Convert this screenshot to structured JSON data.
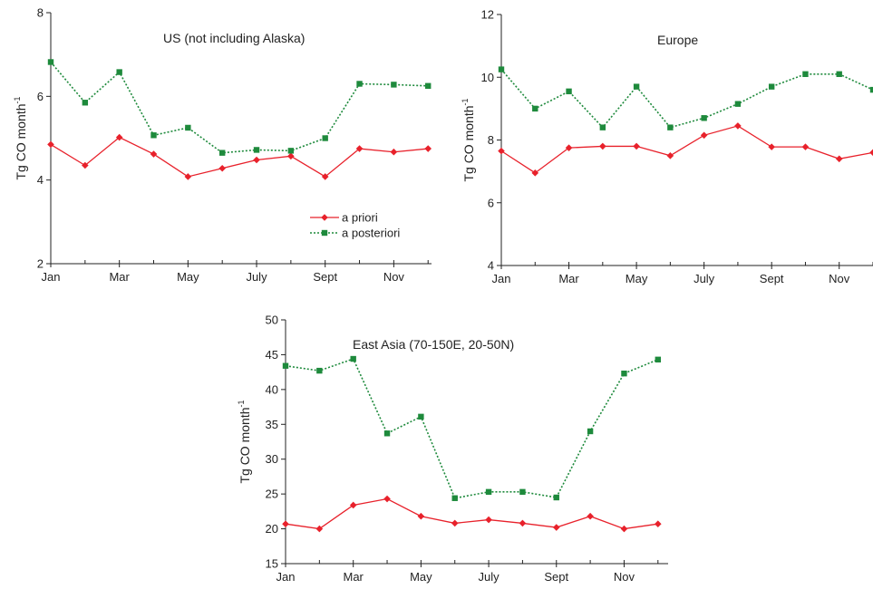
{
  "chart_data": [
    {
      "type": "line",
      "title": "US (not including Alaska)",
      "ylabel": "Tg CO month",
      "ylabel_sup": "-1",
      "ylim": [
        2,
        8
      ],
      "yticks": [
        2,
        4,
        6,
        8
      ],
      "x": [
        1,
        2,
        3,
        4,
        5,
        6,
        7,
        8,
        9,
        10,
        11,
        12
      ],
      "xticks": [
        {
          "x": 1,
          "label": "Jan"
        },
        {
          "x": 3,
          "label": "Mar"
        },
        {
          "x": 5,
          "label": "May"
        },
        {
          "x": 7,
          "label": "July"
        },
        {
          "x": 9,
          "label": "Sept"
        },
        {
          "x": 11,
          "label": "Nov"
        }
      ],
      "legend": {
        "position": "bottom-right",
        "entries": [
          "a priori",
          "a posteriori"
        ]
      },
      "series": [
        {
          "name": "a priori",
          "color": "#e8212b",
          "marker": "diamond",
          "style": "solid",
          "values": [
            4.85,
            4.35,
            5.02,
            4.62,
            4.08,
            4.28,
            4.48,
            4.57,
            4.08,
            4.75,
            4.67,
            4.75
          ]
        },
        {
          "name": "a posteriori",
          "color": "#1e8a3c",
          "marker": "square",
          "style": "dotted",
          "values": [
            6.82,
            5.85,
            6.58,
            5.07,
            5.25,
            4.65,
            4.72,
            4.7,
            5.0,
            6.3,
            6.28,
            6.25
          ]
        }
      ]
    },
    {
      "type": "line",
      "title": "Europe",
      "ylabel": "Tg CO month",
      "ylabel_sup": "-1",
      "ylim": [
        4,
        12
      ],
      "yticks": [
        4,
        6,
        8,
        10,
        12
      ],
      "x": [
        1,
        2,
        3,
        4,
        5,
        6,
        7,
        8,
        9,
        10,
        11,
        12
      ],
      "xticks": [
        {
          "x": 1,
          "label": "Jan"
        },
        {
          "x": 3,
          "label": "Mar"
        },
        {
          "x": 5,
          "label": "May"
        },
        {
          "x": 7,
          "label": "July"
        },
        {
          "x": 9,
          "label": "Sept"
        },
        {
          "x": 11,
          "label": "Nov"
        }
      ],
      "series": [
        {
          "name": "a priori",
          "color": "#e8212b",
          "marker": "diamond",
          "style": "solid",
          "values": [
            7.65,
            6.95,
            7.75,
            7.8,
            7.8,
            7.5,
            8.15,
            8.45,
            7.78,
            7.78,
            7.4,
            7.6
          ]
        },
        {
          "name": "a posteriori",
          "color": "#1e8a3c",
          "marker": "square",
          "style": "dotted",
          "values": [
            10.25,
            9.0,
            9.55,
            8.4,
            9.7,
            8.4,
            8.7,
            9.15,
            9.7,
            10.1,
            10.1,
            9.6
          ]
        }
      ]
    },
    {
      "type": "line",
      "title": "East Asia (70-150E, 20-50N)",
      "ylabel": "Tg CO month",
      "ylabel_sup": "-1",
      "ylim": [
        15,
        50
      ],
      "yticks": [
        15,
        20,
        25,
        30,
        35,
        40,
        45,
        50
      ],
      "x": [
        1,
        2,
        3,
        4,
        5,
        6,
        7,
        8,
        9,
        10,
        11,
        12
      ],
      "xticks": [
        {
          "x": 1,
          "label": "Jan"
        },
        {
          "x": 3,
          "label": "Mar"
        },
        {
          "x": 5,
          "label": "May"
        },
        {
          "x": 7,
          "label": "July"
        },
        {
          "x": 9,
          "label": "Sept"
        },
        {
          "x": 11,
          "label": "Nov"
        }
      ],
      "series": [
        {
          "name": "a priori",
          "color": "#e8212b",
          "marker": "diamond",
          "style": "solid",
          "values": [
            20.7,
            20.0,
            23.4,
            24.3,
            21.8,
            20.8,
            21.3,
            20.8,
            20.2,
            21.8,
            20.0,
            20.7
          ]
        },
        {
          "name": "a posteriori",
          "color": "#1e8a3c",
          "marker": "square",
          "style": "dotted",
          "values": [
            43.4,
            42.7,
            44.4,
            33.7,
            36.1,
            24.4,
            25.3,
            25.3,
            24.5,
            34.0,
            42.3,
            44.3
          ]
        }
      ]
    }
  ]
}
